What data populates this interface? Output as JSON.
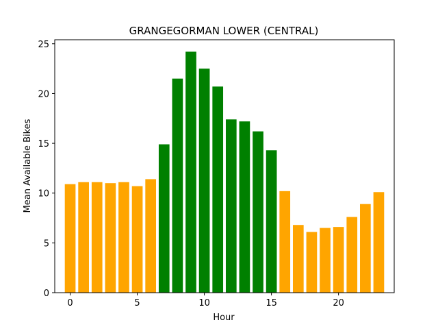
{
  "chart_data": {
    "type": "bar",
    "title": "GRANGEGORMAN LOWER (CENTRAL)",
    "xlabel": "Hour",
    "ylabel": "Mean Available Bikes",
    "x": [
      0,
      1,
      2,
      3,
      4,
      5,
      6,
      7,
      8,
      9,
      10,
      11,
      12,
      13,
      14,
      15,
      16,
      17,
      18,
      19,
      20,
      21,
      22,
      23
    ],
    "values": [
      10.9,
      11.1,
      11.1,
      11.0,
      11.1,
      10.7,
      11.4,
      14.9,
      21.5,
      24.2,
      22.5,
      20.7,
      17.4,
      17.2,
      16.2,
      14.3,
      10.2,
      6.8,
      6.1,
      6.5,
      6.6,
      7.6,
      8.9,
      10.1
    ],
    "bar_colors": [
      "#ffa500",
      "#ffa500",
      "#ffa500",
      "#ffa500",
      "#ffa500",
      "#ffa500",
      "#ffa500",
      "#008000",
      "#008000",
      "#008000",
      "#008000",
      "#008000",
      "#008000",
      "#008000",
      "#008000",
      "#008000",
      "#ffa500",
      "#ffa500",
      "#ffa500",
      "#ffa500",
      "#ffa500",
      "#ffa500",
      "#ffa500",
      "#ffa500"
    ],
    "xlim": [
      -1.15,
      24.15
    ],
    "ylim": [
      0,
      25.4
    ],
    "xticks": [
      0,
      5,
      10,
      15,
      20
    ],
    "yticks": [
      0,
      5,
      10,
      15,
      20,
      25
    ],
    "grid": false,
    "legend": "none"
  }
}
